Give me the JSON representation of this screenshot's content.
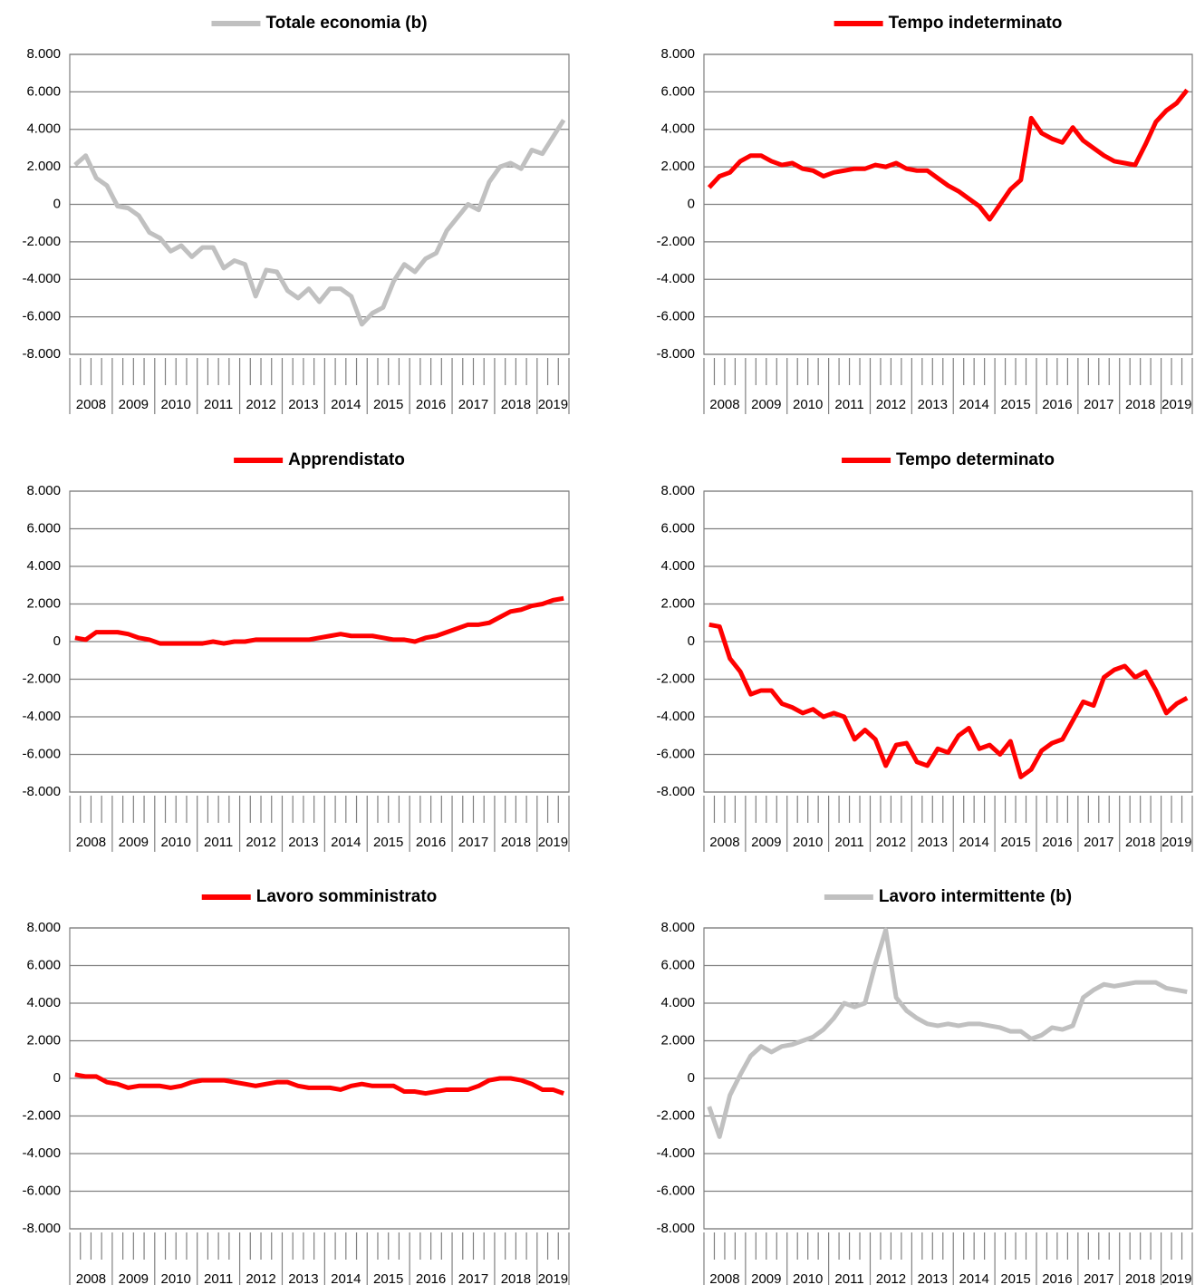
{
  "chart_data": [
    {
      "type": "line",
      "categories": [
        "2008",
        null,
        null,
        null,
        "2009",
        null,
        null,
        null,
        "2010",
        null,
        null,
        null,
        "2011",
        null,
        null,
        null,
        "2012",
        null,
        null,
        null,
        "2013",
        null,
        null,
        null,
        "2014",
        null,
        null,
        null,
        "2015",
        null,
        null,
        null,
        "2016",
        null,
        null,
        null,
        "2017",
        null,
        null,
        null,
        "2018",
        null,
        null,
        null,
        "2019",
        null,
        null
      ],
      "series": [
        {
          "name": "Totale economia (b)",
          "color": "#c0c0c0",
          "values": [
            2100,
            2600,
            1400,
            1000,
            -100,
            -200,
            -600,
            -1500,
            -1800,
            -2500,
            -2200,
            -2800,
            -2300,
            -2300,
            -3400,
            -3000,
            -3200,
            -4900,
            -3500,
            -3600,
            -4600,
            -5000,
            -4500,
            -5200,
            -4500,
            -4500,
            -4900,
            -6400,
            -5800,
            -5500,
            -4100,
            -3200,
            -3600,
            -2900,
            -2600,
            -1400,
            -700,
            0,
            -300,
            1200,
            2000,
            2200,
            1900,
            2900,
            2700,
            3600,
            4500
          ]
        }
      ],
      "ylim": [
        -8000,
        8000
      ],
      "yticks": [
        {
          "value": -8000,
          "label": "-8.000"
        },
        {
          "value": -6000,
          "label": "-6.000"
        },
        {
          "value": -4000,
          "label": "-4.000"
        },
        {
          "value": -2000,
          "label": "-2.000"
        },
        0,
        {
          "value": 2000,
          "label": "2.000"
        },
        {
          "value": 4000,
          "label": "4.000"
        },
        {
          "value": 6000,
          "label": "6.000"
        },
        {
          "value": 8000,
          "label": "8.000"
        }
      ],
      "grid": true
    },
    {
      "type": "line",
      "categories": [
        "2008",
        null,
        null,
        null,
        "2009",
        null,
        null,
        null,
        "2010",
        null,
        null,
        null,
        "2011",
        null,
        null,
        null,
        "2012",
        null,
        null,
        null,
        "2013",
        null,
        null,
        null,
        "2014",
        null,
        null,
        null,
        "2015",
        null,
        null,
        null,
        "2016",
        null,
        null,
        null,
        "2017",
        null,
        null,
        null,
        "2018",
        null,
        null,
        null,
        "2019",
        null,
        null
      ],
      "series": [
        {
          "name": "Tempo indeterminato",
          "color": "#ff0000",
          "values": [
            900,
            1500,
            1700,
            2300,
            2600,
            2600,
            2300,
            2100,
            2200,
            1900,
            1800,
            1500,
            1700,
            1800,
            1900,
            1900,
            2100,
            2000,
            2200,
            1900,
            1800,
            1800,
            1400,
            1000,
            700,
            300,
            -100,
            -800,
            0,
            800,
            1300,
            4600,
            3800,
            3500,
            3300,
            4100,
            3400,
            3000,
            2600,
            2300,
            2200,
            2100,
            3200,
            4400,
            5000,
            5400,
            6100
          ]
        }
      ],
      "ylim": [
        -8000,
        8000
      ],
      "yticks": [
        {
          "value": -8000,
          "label": "-8.000"
        },
        {
          "value": -6000,
          "label": "-6.000"
        },
        {
          "value": -4000,
          "label": "-4.000"
        },
        {
          "value": -2000,
          "label": "-2.000"
        },
        0,
        {
          "value": 2000,
          "label": "2.000"
        },
        {
          "value": 4000,
          "label": "4.000"
        },
        {
          "value": 6000,
          "label": "6.000"
        },
        {
          "value": 8000,
          "label": "8.000"
        }
      ],
      "grid": true
    },
    {
      "type": "line",
      "categories": [
        "2008",
        null,
        null,
        null,
        "2009",
        null,
        null,
        null,
        "2010",
        null,
        null,
        null,
        "2011",
        null,
        null,
        null,
        "2012",
        null,
        null,
        null,
        "2013",
        null,
        null,
        null,
        "2014",
        null,
        null,
        null,
        "2015",
        null,
        null,
        null,
        "2016",
        null,
        null,
        null,
        "2017",
        null,
        null,
        null,
        "2018",
        null,
        null,
        null,
        "2019",
        null,
        null
      ],
      "series": [
        {
          "name": "Apprendistato",
          "color": "#ff0000",
          "values": [
            200,
            100,
            500,
            500,
            500,
            400,
            200,
            100,
            -100,
            -100,
            -100,
            -100,
            -100,
            0,
            -100,
            0,
            0,
            100,
            100,
            100,
            100,
            100,
            100,
            200,
            300,
            400,
            300,
            300,
            300,
            200,
            100,
            100,
            0,
            200,
            300,
            500,
            700,
            900,
            900,
            1000,
            1300,
            1600,
            1700,
            1900,
            2000,
            2200,
            2300
          ]
        }
      ],
      "ylim": [
        -8000,
        8000
      ],
      "yticks": [
        {
          "value": -8000,
          "label": "-8.000"
        },
        {
          "value": -6000,
          "label": "-6.000"
        },
        {
          "value": -4000,
          "label": "-4.000"
        },
        {
          "value": -2000,
          "label": "-2.000"
        },
        0,
        {
          "value": 2000,
          "label": "2.000"
        },
        {
          "value": 4000,
          "label": "4.000"
        },
        {
          "value": 6000,
          "label": "6.000"
        },
        {
          "value": 8000,
          "label": "8.000"
        }
      ],
      "grid": true
    },
    {
      "type": "line",
      "categories": [
        "2008",
        null,
        null,
        null,
        "2009",
        null,
        null,
        null,
        "2010",
        null,
        null,
        null,
        "2011",
        null,
        null,
        null,
        "2012",
        null,
        null,
        null,
        "2013",
        null,
        null,
        null,
        "2014",
        null,
        null,
        null,
        "2015",
        null,
        null,
        null,
        "2016",
        null,
        null,
        null,
        "2017",
        null,
        null,
        null,
        "2018",
        null,
        null,
        null,
        "2019",
        null,
        null
      ],
      "series": [
        {
          "name": "Tempo determinato",
          "color": "#ff0000",
          "values": [
            900,
            800,
            -900,
            -1600,
            -2800,
            -2600,
            -2600,
            -3300,
            -3500,
            -3800,
            -3600,
            -4000,
            -3800,
            -4000,
            -5200,
            -4700,
            -5200,
            -6600,
            -5500,
            -5400,
            -6400,
            -6600,
            -5700,
            -5900,
            -5000,
            -4600,
            -5700,
            -5500,
            -6000,
            -5300,
            -7200,
            -6800,
            -5800,
            -5400,
            -5200,
            -4200,
            -3200,
            -3400,
            -1900,
            -1500,
            -1300,
            -1900,
            -1600,
            -2600,
            -3800,
            -3300,
            -3000
          ]
        }
      ],
      "ylim": [
        -8000,
        8000
      ],
      "yticks": [
        {
          "value": -8000,
          "label": "-8.000"
        },
        {
          "value": -6000,
          "label": "-6.000"
        },
        {
          "value": -4000,
          "label": "-4.000"
        },
        {
          "value": -2000,
          "label": "-2.000"
        },
        0,
        {
          "value": 2000,
          "label": "2.000"
        },
        {
          "value": 4000,
          "label": "4.000"
        },
        {
          "value": 6000,
          "label": "6.000"
        },
        {
          "value": 8000,
          "label": "8.000"
        }
      ],
      "grid": true
    },
    {
      "type": "line",
      "categories": [
        "2008",
        null,
        null,
        null,
        "2009",
        null,
        null,
        null,
        "2010",
        null,
        null,
        null,
        "2011",
        null,
        null,
        null,
        "2012",
        null,
        null,
        null,
        "2013",
        null,
        null,
        null,
        "2014",
        null,
        null,
        null,
        "2015",
        null,
        null,
        null,
        "2016",
        null,
        null,
        null,
        "2017",
        null,
        null,
        null,
        "2018",
        null,
        null,
        null,
        "2019",
        null,
        null
      ],
      "series": [
        {
          "name": "Lavoro somministrato",
          "color": "#ff0000",
          "values": [
            200,
            100,
            100,
            -200,
            -300,
            -500,
            -400,
            -400,
            -400,
            -500,
            -400,
            -200,
            -100,
            -100,
            -100,
            -200,
            -300,
            -400,
            -300,
            -200,
            -200,
            -400,
            -500,
            -500,
            -500,
            -600,
            -400,
            -300,
            -400,
            -400,
            -400,
            -700,
            -700,
            -800,
            -700,
            -600,
            -600,
            -600,
            -400,
            -100,
            0,
            0,
            -100,
            -300,
            -600,
            -600,
            -800
          ]
        }
      ],
      "ylim": [
        -8000,
        8000
      ],
      "yticks": [
        {
          "value": -8000,
          "label": "-8.000"
        },
        {
          "value": -6000,
          "label": "-6.000"
        },
        {
          "value": -4000,
          "label": "-4.000"
        },
        {
          "value": -2000,
          "label": "-2.000"
        },
        0,
        {
          "value": 2000,
          "label": "2.000"
        },
        {
          "value": 4000,
          "label": "4.000"
        },
        {
          "value": 6000,
          "label": "6.000"
        },
        {
          "value": 8000,
          "label": "8.000"
        }
      ],
      "grid": true
    },
    {
      "type": "line",
      "categories": [
        "2008",
        null,
        null,
        null,
        "2009",
        null,
        null,
        null,
        "2010",
        null,
        null,
        null,
        "2011",
        null,
        null,
        null,
        "2012",
        null,
        null,
        null,
        "2013",
        null,
        null,
        null,
        "2014",
        null,
        null,
        null,
        "2015",
        null,
        null,
        null,
        "2016",
        null,
        null,
        null,
        "2017",
        null,
        null,
        null,
        "2018",
        null,
        null,
        null,
        "2019",
        null,
        null
      ],
      "series": [
        {
          "name": "Lavoro intermittente (b)",
          "color": "#c0c0c0",
          "values": [
            -1500,
            -3100,
            -900,
            200,
            1200,
            1700,
            1400,
            1700,
            1800,
            2000,
            2200,
            2600,
            3200,
            4000,
            3800,
            4000,
            6100,
            7900,
            4300,
            3600,
            3200,
            2900,
            2800,
            2900,
            2800,
            2900,
            2900,
            2800,
            2700,
            2500,
            2500,
            2100,
            2300,
            2700,
            2600,
            2800,
            4300,
            4700,
            5000,
            4900,
            5000,
            5100,
            5100,
            5100,
            4800,
            4700,
            4600
          ]
        }
      ],
      "ylim": [
        -8000,
        8000
      ],
      "yticks": [
        {
          "value": -8000,
          "label": "-8.000"
        },
        {
          "value": -6000,
          "label": "-6.000"
        },
        {
          "value": -4000,
          "label": "-4.000"
        },
        {
          "value": -2000,
          "label": "-2.000"
        },
        0,
        {
          "value": 2000,
          "label": "2.000"
        },
        {
          "value": 4000,
          "label": "4.000"
        },
        {
          "value": 6000,
          "label": "6.000"
        },
        {
          "value": 8000,
          "label": "8.000"
        }
      ],
      "grid": true
    }
  ]
}
